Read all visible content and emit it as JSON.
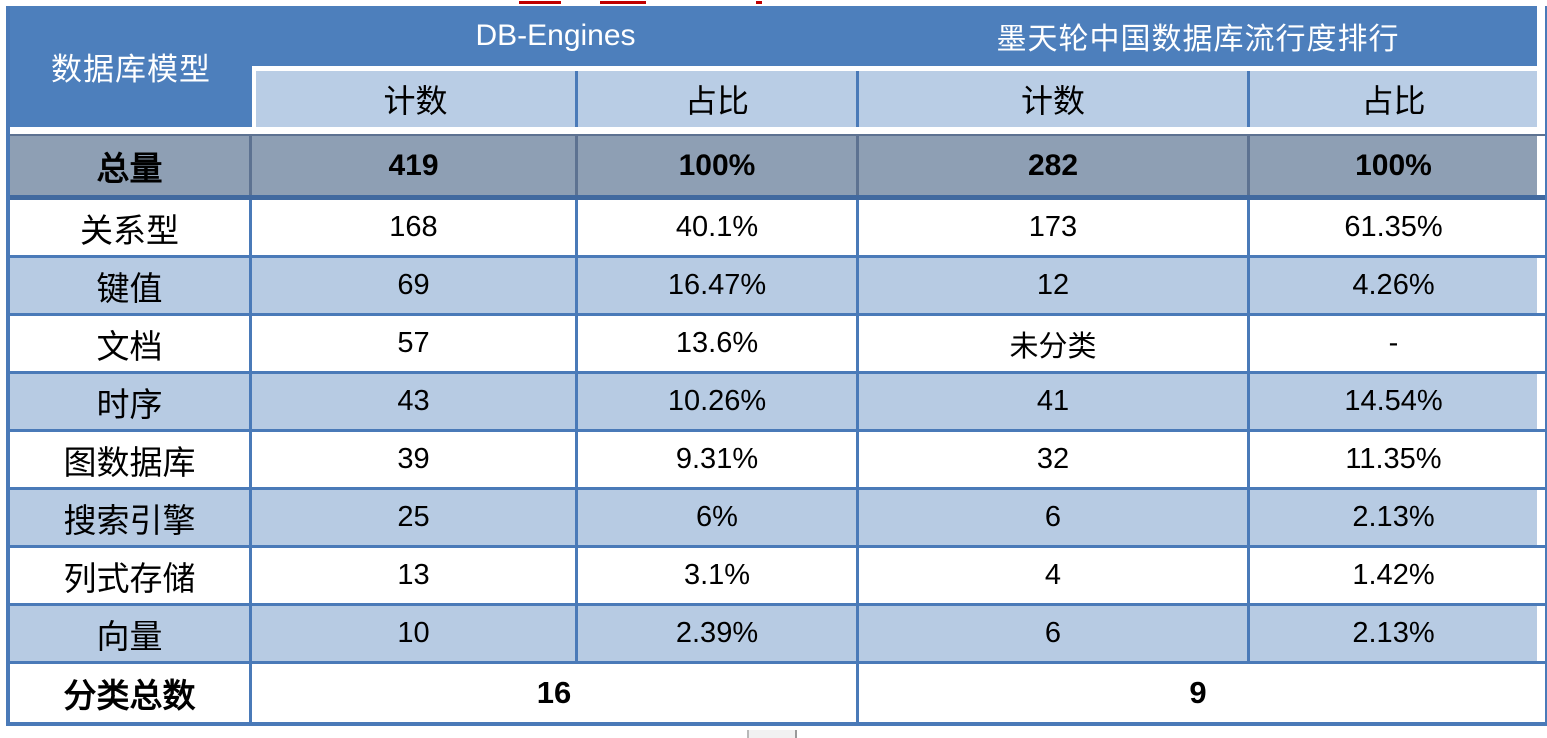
{
  "table": {
    "corner_header": "数据库模型",
    "groups": [
      {
        "label": "DB-Engines",
        "columns": [
          "计数",
          "占比"
        ]
      },
      {
        "label": "墨天轮中国数据库流行度排行",
        "columns": [
          "计数",
          "占比"
        ]
      }
    ],
    "total_row": {
      "label": "总量",
      "values": [
        "419",
        "100%",
        "282",
        "100%"
      ]
    },
    "rows": [
      {
        "label": "关系型",
        "values": [
          "168",
          "40.1%",
          "173",
          "61.35%"
        ]
      },
      {
        "label": "键值",
        "values": [
          "69",
          "16.47%",
          "12",
          "4.26%"
        ]
      },
      {
        "label": "文档",
        "values": [
          "57",
          "13.6%",
          "未分类",
          "-"
        ]
      },
      {
        "label": "时序",
        "values": [
          "43",
          "10.26%",
          "41",
          "14.54%"
        ]
      },
      {
        "label": "图数据库",
        "values": [
          "39",
          "9.31%",
          "32",
          "11.35%"
        ]
      },
      {
        "label": "搜索引擎",
        "values": [
          "25",
          "6%",
          "6",
          "2.13%"
        ]
      },
      {
        "label": "列式存储",
        "values": [
          "13",
          "3.1%",
          "4",
          "1.42%"
        ]
      },
      {
        "label": "向量",
        "values": [
          "10",
          "2.39%",
          "6",
          "2.13%"
        ]
      }
    ],
    "footer_row": {
      "label": "分类总数",
      "values": [
        "16",
        "9"
      ]
    }
  },
  "chart_data": {
    "type": "table",
    "title": "数据库模型流行度对比：DB-Engines vs 墨天轮中国数据库流行度排行",
    "column_groups": [
      "DB-Engines",
      "墨天轮中国数据库流行度排行"
    ],
    "columns": [
      "数据库模型",
      "DB-Engines 计数",
      "DB-Engines 占比",
      "墨天轮 计数",
      "墨天轮 占比"
    ],
    "rows": [
      [
        "总量",
        419,
        "100%",
        282,
        "100%"
      ],
      [
        "关系型",
        168,
        "40.1%",
        173,
        "61.35%"
      ],
      [
        "键值",
        69,
        "16.47%",
        12,
        "4.26%"
      ],
      [
        "文档",
        57,
        "13.6%",
        "未分类",
        "-"
      ],
      [
        "时序",
        43,
        "10.26%",
        41,
        "14.54%"
      ],
      [
        "图数据库",
        39,
        "9.31%",
        32,
        "11.35%"
      ],
      [
        "搜索引擎",
        25,
        "6%",
        6,
        "2.13%"
      ],
      [
        "列式存储",
        13,
        "3.1%",
        4,
        "1.42%"
      ],
      [
        "向量",
        10,
        "2.39%",
        6,
        "2.13%"
      ],
      [
        "分类总数",
        16,
        null,
        9,
        null
      ]
    ]
  },
  "colors": {
    "header_blue": "#4d7fbc",
    "subheader_blue": "#b9cde5",
    "band_blue": "#b7cbe3",
    "total_row_gray": "#8e9fb4",
    "border_blue": "#4a7ab8",
    "dark_divider": "#5d7291",
    "artifact_red": "#c00000"
  }
}
